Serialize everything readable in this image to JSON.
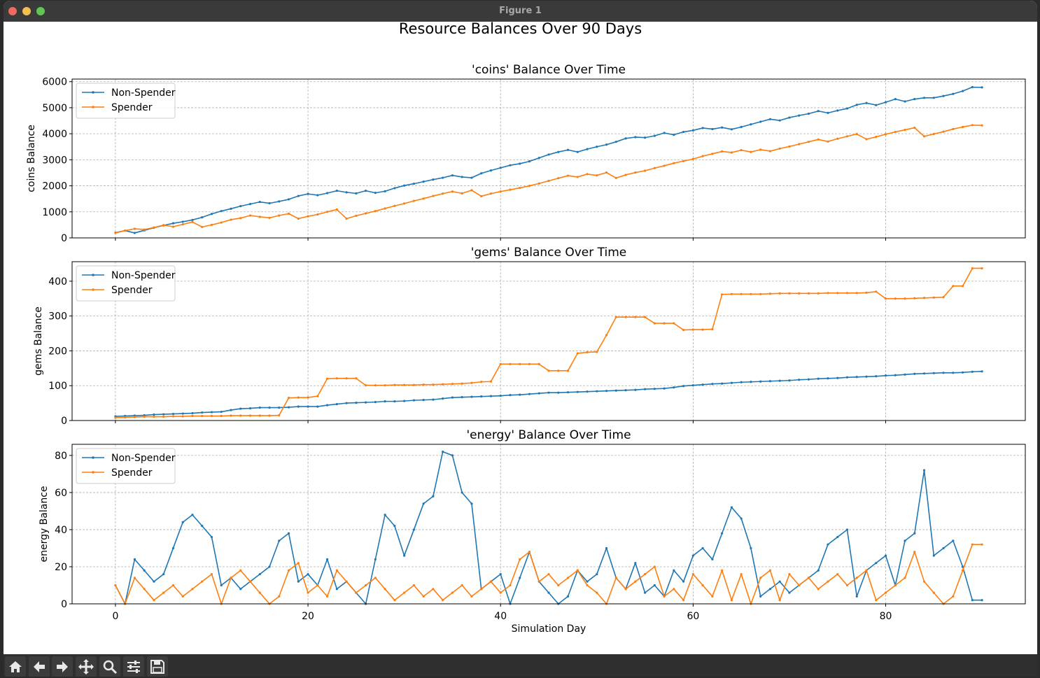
{
  "window": {
    "title": "Figure 1"
  },
  "toolbar": {
    "buttons": [
      {
        "name": "home-icon"
      },
      {
        "name": "back-arrow-icon"
      },
      {
        "name": "forward-arrow-icon"
      },
      {
        "name": "pan-icon"
      },
      {
        "name": "zoom-icon"
      },
      {
        "name": "configure-subplots-icon"
      },
      {
        "name": "save-icon"
      }
    ]
  },
  "colors": {
    "non_spender": "#1f77b4",
    "spender": "#ff7f0e"
  },
  "chart_data": [
    {
      "type": "line",
      "suptitle": "Resource Balances Over 90 Days",
      "title": "'coins' Balance Over Time",
      "xlabel": "",
      "ylabel": "coins Balance",
      "xlim": [
        -4.5,
        94.5
      ],
      "ylim": [
        0,
        6100
      ],
      "yticks": [
        0,
        1000,
        2000,
        3000,
        4000,
        5000,
        6000
      ],
      "xticks": [
        0,
        20,
        40,
        60,
        80
      ],
      "xtick_labels_visible": false,
      "grid": true,
      "legend": "top-left",
      "series": [
        {
          "name": "Non-Spender",
          "color": "#1f77b4",
          "values": [
            200,
            280,
            190,
            290,
            390,
            480,
            560,
            620,
            690,
            790,
            920,
            1030,
            1120,
            1220,
            1300,
            1380,
            1330,
            1400,
            1480,
            1610,
            1690,
            1640,
            1720,
            1810,
            1750,
            1710,
            1810,
            1730,
            1790,
            1910,
            2010,
            2080,
            2160,
            2240,
            2310,
            2400,
            2340,
            2310,
            2480,
            2590,
            2690,
            2790,
            2850,
            2940,
            3070,
            3200,
            3300,
            3380,
            3300,
            3410,
            3500,
            3580,
            3690,
            3820,
            3870,
            3850,
            3920,
            4030,
            3960,
            4070,
            4130,
            4220,
            4180,
            4240,
            4170,
            4260,
            4360,
            4460,
            4560,
            4510,
            4620,
            4700,
            4770,
            4870,
            4800,
            4890,
            4970,
            5110,
            5180,
            5100,
            5210,
            5330,
            5240,
            5330,
            5380,
            5380,
            5450,
            5530,
            5640,
            5790,
            5780
          ]
        },
        {
          "name": "Spender",
          "color": "#ff7f0e",
          "values": [
            190,
            280,
            350,
            320,
            400,
            490,
            430,
            520,
            610,
            420,
            500,
            590,
            700,
            760,
            860,
            810,
            770,
            860,
            930,
            740,
            830,
            900,
            1000,
            1090,
            740,
            850,
            940,
            1030,
            1130,
            1230,
            1320,
            1420,
            1510,
            1610,
            1700,
            1780,
            1710,
            1830,
            1600,
            1700,
            1780,
            1850,
            1920,
            2000,
            2090,
            2190,
            2290,
            2390,
            2340,
            2450,
            2400,
            2510,
            2300,
            2420,
            2510,
            2580,
            2680,
            2770,
            2870,
            2950,
            3030,
            3140,
            3230,
            3320,
            3280,
            3370,
            3300,
            3390,
            3330,
            3430,
            3510,
            3600,
            3690,
            3780,
            3700,
            3810,
            3900,
            3990,
            3790,
            3880,
            3980,
            4070,
            4150,
            4230,
            3900,
            3990,
            4080,
            4180,
            4260,
            4330,
            4320
          ]
        }
      ]
    },
    {
      "type": "line",
      "title": "'gems' Balance Over Time",
      "xlabel": "",
      "ylabel": "gems Balance",
      "xlim": [
        -4.5,
        94.5
      ],
      "ylim": [
        0,
        456
      ],
      "yticks": [
        0,
        100,
        200,
        300,
        400
      ],
      "xticks": [
        0,
        20,
        40,
        60,
        80
      ],
      "xtick_labels_visible": false,
      "grid": true,
      "legend": "top-left",
      "series": [
        {
          "name": "Non-Spender",
          "color": "#1f77b4",
          "values": [
            12,
            13,
            14,
            15,
            17,
            18,
            19,
            20,
            21,
            23,
            24,
            25,
            30,
            34,
            35,
            37,
            37,
            37,
            38,
            40,
            40,
            40,
            44,
            47,
            50,
            51,
            52,
            53,
            55,
            55,
            56,
            58,
            59,
            60,
            63,
            66,
            67,
            68,
            69,
            70,
            71,
            73,
            74,
            76,
            78,
            80,
            80,
            81,
            82,
            83,
            84,
            85,
            86,
            87,
            88,
            90,
            91,
            92,
            95,
            99,
            101,
            103,
            105,
            106,
            108,
            110,
            111,
            112,
            113,
            114,
            115,
            117,
            118,
            120,
            121,
            122,
            124,
            125,
            126,
            127,
            129,
            130,
            132,
            134,
            135,
            136,
            137,
            137,
            138,
            140,
            141
          ]
        },
        {
          "name": "Spender",
          "color": "#ff7f0e",
          "values": [
            8,
            9,
            10,
            11,
            11,
            11,
            12,
            12,
            13,
            13,
            13,
            13,
            14,
            14,
            14,
            14,
            14,
            15,
            65,
            66,
            66,
            70,
            120,
            121,
            121,
            121,
            101,
            101,
            101,
            102,
            102,
            102,
            103,
            103,
            104,
            105,
            106,
            108,
            111,
            112,
            162,
            162,
            162,
            162,
            162,
            143,
            143,
            143,
            193,
            196,
            197,
            245,
            297,
            297,
            297,
            297,
            279,
            279,
            279,
            260,
            261,
            261,
            262,
            362,
            363,
            363,
            363,
            363,
            364,
            365,
            365,
            365,
            365,
            365,
            366,
            366,
            366,
            366,
            367,
            370,
            350,
            350,
            350,
            351,
            352,
            353,
            354,
            386,
            386,
            437,
            437
          ]
        }
      ]
    },
    {
      "type": "line",
      "title": "'energy' Balance Over Time",
      "xlabel": "Simulation Day",
      "ylabel": "energy Balance",
      "xlim": [
        -4.5,
        94.5
      ],
      "ylim": [
        0,
        86
      ],
      "yticks": [
        0,
        20,
        40,
        60,
        80
      ],
      "xticks": [
        0,
        20,
        40,
        60,
        80
      ],
      "xtick_labels_visible": true,
      "grid": true,
      "legend": "top-left",
      "series": [
        {
          "name": "Non-Spender",
          "color": "#1f77b4",
          "values": [
            10,
            0,
            24,
            18,
            12,
            16,
            30,
            44,
            48,
            42,
            36,
            10,
            14,
            8,
            12,
            16,
            20,
            34,
            38,
            12,
            16,
            10,
            24,
            8,
            12,
            6,
            0,
            24,
            48,
            42,
            26,
            40,
            54,
            58,
            82,
            80,
            60,
            54,
            8,
            12,
            16,
            0,
            14,
            28,
            12,
            6,
            0,
            4,
            18,
            12,
            16,
            30,
            14,
            8,
            22,
            6,
            10,
            4,
            18,
            12,
            26,
            30,
            24,
            38,
            52,
            46,
            30,
            4,
            8,
            12,
            6,
            10,
            14,
            18,
            32,
            36,
            40,
            4,
            18,
            22,
            26,
            10,
            34,
            38,
            72,
            26,
            30,
            34,
            20,
            2,
            2
          ]
        },
        {
          "name": "Spender",
          "color": "#ff7f0e",
          "values": [
            10,
            0,
            14,
            8,
            2,
            6,
            10,
            4,
            8,
            12,
            16,
            0,
            14,
            18,
            12,
            6,
            0,
            4,
            18,
            22,
            6,
            10,
            4,
            18,
            12,
            6,
            10,
            14,
            8,
            2,
            6,
            10,
            4,
            8,
            2,
            6,
            10,
            4,
            8,
            12,
            6,
            10,
            24,
            28,
            12,
            16,
            10,
            14,
            18,
            10,
            6,
            0,
            14,
            8,
            12,
            16,
            20,
            4,
            8,
            2,
            16,
            10,
            4,
            18,
            2,
            16,
            0,
            14,
            18,
            2,
            16,
            10,
            14,
            8,
            12,
            16,
            10,
            14,
            18,
            2,
            6,
            10,
            14,
            28,
            12,
            6,
            0,
            4,
            18,
            32,
            32
          ]
        }
      ]
    }
  ]
}
